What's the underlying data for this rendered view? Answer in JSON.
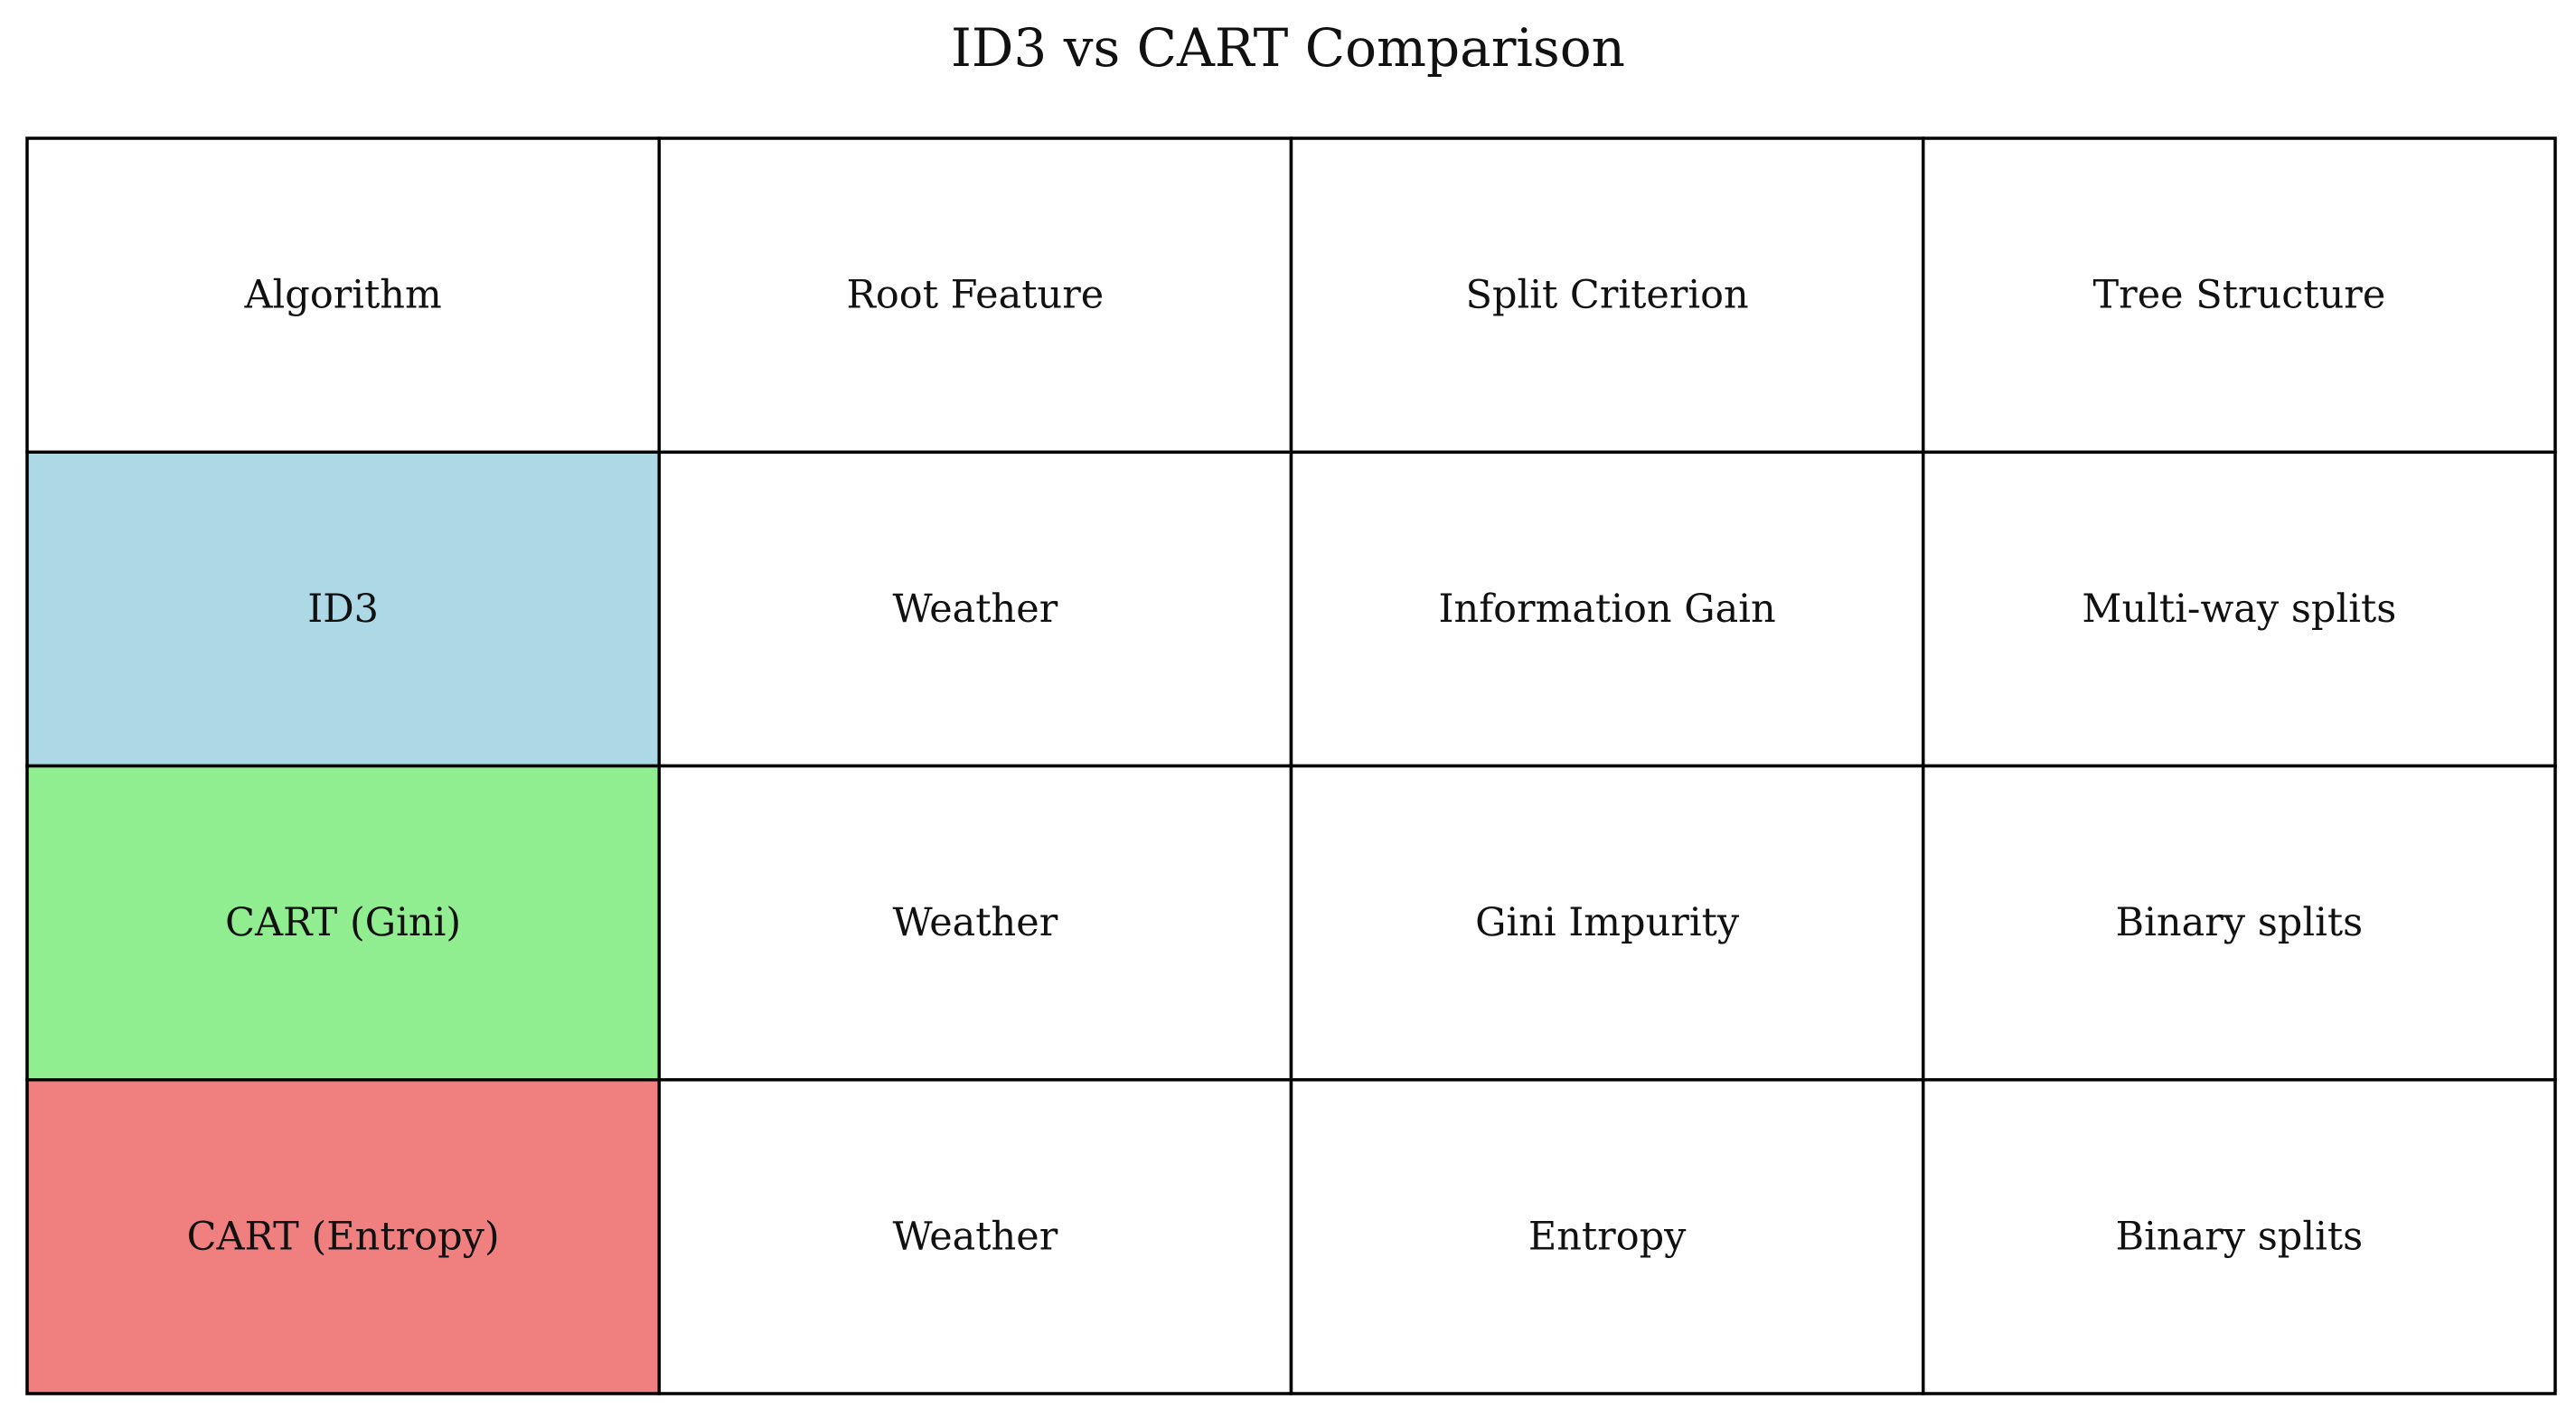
{
  "chart_data": {
    "type": "table",
    "title": "ID3 vs CART Comparison",
    "columns": [
      "Algorithm",
      "Root Feature",
      "Split Criterion",
      "Tree Structure"
    ],
    "rows": [
      [
        "ID3",
        "Weather",
        "Information Gain",
        "Multi-way splits"
      ],
      [
        "CART (Gini)",
        "Weather",
        "Gini Impurity",
        "Binary splits"
      ],
      [
        "CART (Entropy)",
        "Weather",
        "Entropy",
        "Binary splits"
      ]
    ],
    "row_colors": [
      "#add8e6",
      "#90ee90",
      "#f08080"
    ],
    "header_color": "#ffffff",
    "cell_color": "#ffffff",
    "border_color": "#000000"
  }
}
